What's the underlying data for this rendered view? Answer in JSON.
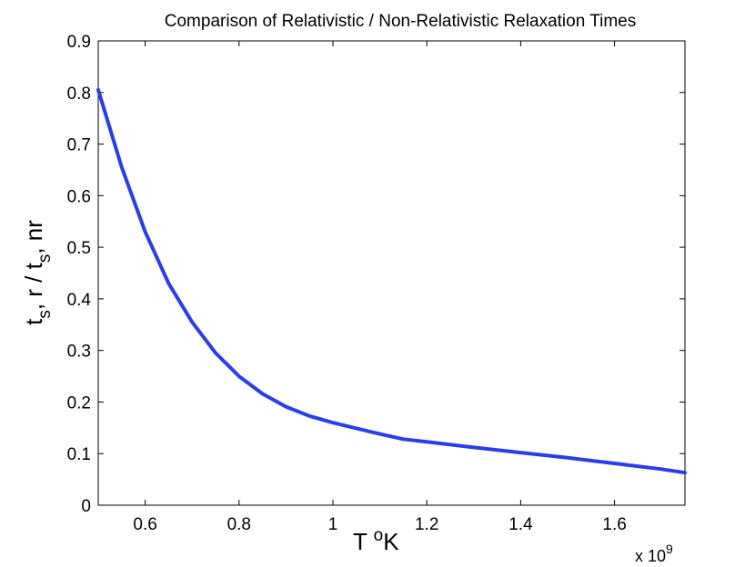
{
  "chart_data": {
    "type": "line",
    "title": "Comparison of Relativistic / Non-Relativistic Relaxation Times",
    "xlabel": {
      "main": "T ",
      "sup": "o",
      "tail": "K"
    },
    "ylabel": {
      "p1": "t",
      "s1": "s",
      "p2": ", r / t",
      "s2": "s",
      "p3": ", nr"
    },
    "x_multiplier": {
      "base": "x 10",
      "exp": "9"
    },
    "xlim": [
      0.5,
      1.75
    ],
    "ylim": [
      0,
      0.9
    ],
    "x_ticks": [
      {
        "value": 0.6,
        "label": "0.6"
      },
      {
        "value": 0.8,
        "label": "0.8"
      },
      {
        "value": 1.0,
        "label": "1"
      },
      {
        "value": 1.2,
        "label": "1.2"
      },
      {
        "value": 1.4,
        "label": "1.4"
      },
      {
        "value": 1.6,
        "label": "1.6"
      }
    ],
    "y_ticks": [
      {
        "value": 0,
        "label": "0"
      },
      {
        "value": 0.1,
        "label": "0.1"
      },
      {
        "value": 0.2,
        "label": "0.2"
      },
      {
        "value": 0.3,
        "label": "0.3"
      },
      {
        "value": 0.4,
        "label": "0.4"
      },
      {
        "value": 0.5,
        "label": "0.5"
      },
      {
        "value": 0.6,
        "label": "0.6"
      },
      {
        "value": 0.7,
        "label": "0.7"
      },
      {
        "value": 0.8,
        "label": "0.8"
      },
      {
        "value": 0.9,
        "label": "0.9"
      }
    ],
    "grid": false,
    "line_color": "#2b3de8",
    "series": [
      {
        "x": [
          0.5,
          0.55,
          0.6,
          0.65,
          0.7,
          0.75,
          0.8,
          0.85,
          0.9,
          0.95,
          1.0,
          1.05,
          1.1,
          1.15,
          1.2,
          1.3,
          1.4,
          1.5,
          1.6,
          1.7,
          1.75
        ],
        "y": [
          0.805,
          0.655,
          0.53,
          0.43,
          0.355,
          0.295,
          0.25,
          0.216,
          0.191,
          0.173,
          0.16,
          0.149,
          0.138,
          0.128,
          0.123,
          0.112,
          0.102,
          0.092,
          0.081,
          0.07,
          0.063
        ]
      }
    ]
  }
}
